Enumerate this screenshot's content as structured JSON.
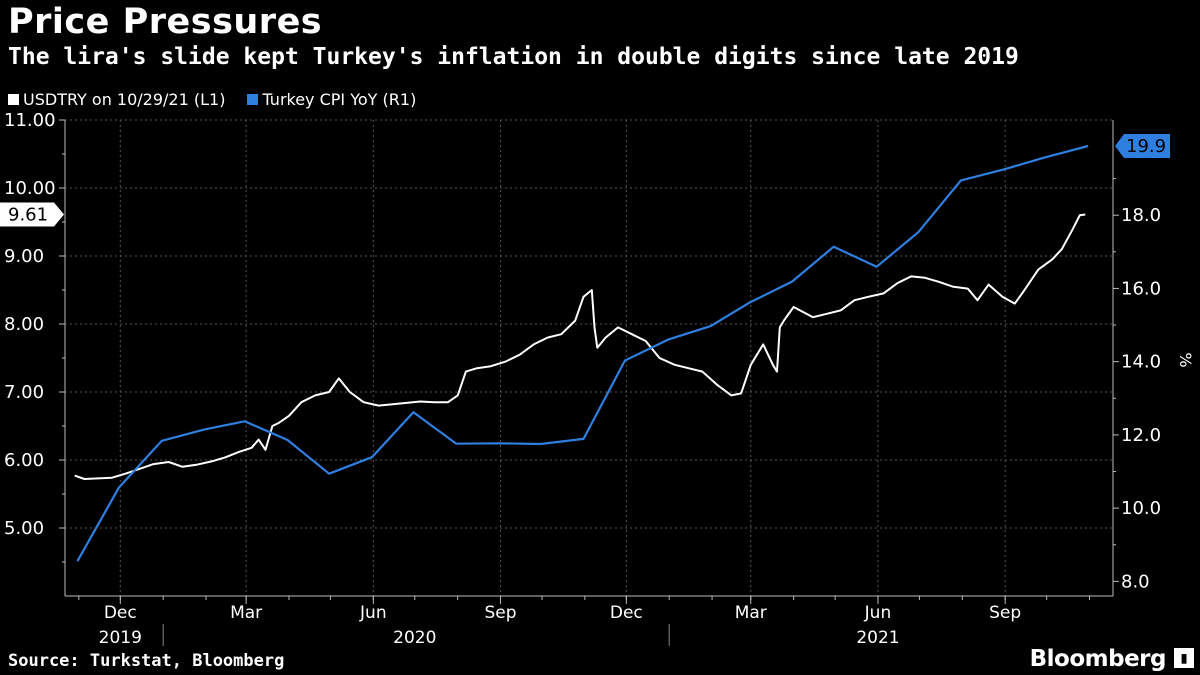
{
  "header": {
    "title": "Price Pressures",
    "subtitle": "The lira's slide kept Turkey's inflation in double digits since late 2019"
  },
  "legend": [
    {
      "label": "USDTRY on 10/29/21 (L1)",
      "color": "#ffffff"
    },
    {
      "label": "Turkey CPI YoY (R1)",
      "color": "#2f7fe0"
    }
  ],
  "footer": {
    "source": "Source: Turkstat, Bloomberg",
    "brand": "Bloomberg"
  },
  "chart_data": {
    "type": "line",
    "x_axis": {
      "month_ticks": [
        "Dec",
        "Mar",
        "Jun",
        "Sep",
        "Dec",
        "Mar",
        "Jun",
        "Sep"
      ],
      "years": [
        "2019",
        "2020",
        "2021"
      ]
    },
    "left_axis": {
      "ticks": [
        "5.00",
        "6.00",
        "7.00",
        "8.00",
        "9.00",
        "10.00",
        "11.00"
      ],
      "ylim": [
        4.0,
        11.0
      ]
    },
    "right_axis": {
      "label": "%",
      "ticks": [
        "8.0",
        "10.0",
        "12.0",
        "14.0",
        "16.0",
        "18.0"
      ],
      "ylim": [
        7.6,
        20.6
      ]
    },
    "series": [
      {
        "name": "USDTRY on 10/29/21 (L1)",
        "axis": "left",
        "color": "#ffffff",
        "last_value_label": "9.61",
        "points": [
          [
            "2019-10-29",
            5.77
          ],
          [
            "2019-11-05",
            5.72
          ],
          [
            "2019-11-15",
            5.73
          ],
          [
            "2019-11-25",
            5.74
          ],
          [
            "2019-12-05",
            5.8
          ],
          [
            "2019-12-15",
            5.87
          ],
          [
            "2019-12-25",
            5.94
          ],
          [
            "2020-01-05",
            5.97
          ],
          [
            "2020-01-15",
            5.9
          ],
          [
            "2020-01-25",
            5.93
          ],
          [
            "2020-02-05",
            5.98
          ],
          [
            "2020-02-15",
            6.04
          ],
          [
            "2020-02-25",
            6.12
          ],
          [
            "2020-03-05",
            6.18
          ],
          [
            "2020-03-10",
            6.3
          ],
          [
            "2020-03-15",
            6.15
          ],
          [
            "2020-03-20",
            6.5
          ],
          [
            "2020-03-25",
            6.55
          ],
          [
            "2020-04-01",
            6.65
          ],
          [
            "2020-04-10",
            6.85
          ],
          [
            "2020-04-20",
            6.95
          ],
          [
            "2020-04-30",
            7.0
          ],
          [
            "2020-05-07",
            7.2
          ],
          [
            "2020-05-15",
            7.0
          ],
          [
            "2020-05-25",
            6.85
          ],
          [
            "2020-06-05",
            6.8
          ],
          [
            "2020-06-15",
            6.82
          ],
          [
            "2020-06-25",
            6.84
          ],
          [
            "2020-07-05",
            6.86
          ],
          [
            "2020-07-15",
            6.85
          ],
          [
            "2020-07-25",
            6.85
          ],
          [
            "2020-08-01",
            6.95
          ],
          [
            "2020-08-07",
            7.3
          ],
          [
            "2020-08-15",
            7.35
          ],
          [
            "2020-08-25",
            7.38
          ],
          [
            "2020-09-05",
            7.45
          ],
          [
            "2020-09-15",
            7.55
          ],
          [
            "2020-09-25",
            7.7
          ],
          [
            "2020-10-05",
            7.8
          ],
          [
            "2020-10-15",
            7.85
          ],
          [
            "2020-10-25",
            8.05
          ],
          [
            "2020-10-31",
            8.4
          ],
          [
            "2020-11-06",
            8.5
          ],
          [
            "2020-11-08",
            7.95
          ],
          [
            "2020-11-10",
            7.65
          ],
          [
            "2020-11-16",
            7.8
          ],
          [
            "2020-11-25",
            7.95
          ],
          [
            "2020-12-05",
            7.85
          ],
          [
            "2020-12-15",
            7.75
          ],
          [
            "2020-12-25",
            7.5
          ],
          [
            "2021-01-05",
            7.4
          ],
          [
            "2021-01-15",
            7.35
          ],
          [
            "2021-01-25",
            7.3
          ],
          [
            "2021-02-05",
            7.1
          ],
          [
            "2021-02-15",
            6.95
          ],
          [
            "2021-02-22",
            6.98
          ],
          [
            "2021-03-01",
            7.4
          ],
          [
            "2021-03-10",
            7.7
          ],
          [
            "2021-03-17",
            7.4
          ],
          [
            "2021-03-20",
            7.3
          ],
          [
            "2021-03-22",
            7.95
          ],
          [
            "2021-03-25",
            8.05
          ],
          [
            "2021-04-01",
            8.25
          ],
          [
            "2021-04-15",
            8.1
          ],
          [
            "2021-04-25",
            8.15
          ],
          [
            "2021-05-05",
            8.2
          ],
          [
            "2021-05-15",
            8.35
          ],
          [
            "2021-05-25",
            8.4
          ],
          [
            "2021-06-05",
            8.45
          ],
          [
            "2021-06-15",
            8.6
          ],
          [
            "2021-06-25",
            8.7
          ],
          [
            "2021-07-05",
            8.68
          ],
          [
            "2021-07-15",
            8.62
          ],
          [
            "2021-07-25",
            8.55
          ],
          [
            "2021-08-05",
            8.52
          ],
          [
            "2021-08-12",
            8.35
          ],
          [
            "2021-08-20",
            8.58
          ],
          [
            "2021-08-30",
            8.4
          ],
          [
            "2021-09-08",
            8.3
          ],
          [
            "2021-09-15",
            8.5
          ],
          [
            "2021-09-25",
            8.8
          ],
          [
            "2021-10-05",
            8.95
          ],
          [
            "2021-10-12",
            9.1
          ],
          [
            "2021-10-20",
            9.4
          ],
          [
            "2021-10-25",
            9.6
          ],
          [
            "2021-10-29",
            9.61
          ]
        ]
      },
      {
        "name": "Turkey CPI YoY (R1)",
        "axis": "right",
        "color": "#2f7fe0",
        "last_value_label": "19.9",
        "points": [
          [
            "2019-10-31",
            8.55
          ],
          [
            "2019-11-30",
            10.56
          ],
          [
            "2019-12-31",
            11.84
          ],
          [
            "2020-01-31",
            12.15
          ],
          [
            "2020-02-29",
            12.37
          ],
          [
            "2020-03-31",
            11.86
          ],
          [
            "2020-04-30",
            10.94
          ],
          [
            "2020-05-31",
            11.39
          ],
          [
            "2020-06-30",
            12.62
          ],
          [
            "2020-07-31",
            11.76
          ],
          [
            "2020-08-31",
            11.77
          ],
          [
            "2020-09-30",
            11.75
          ],
          [
            "2020-10-31",
            11.89
          ],
          [
            "2020-11-30",
            14.03
          ],
          [
            "2020-12-31",
            14.6
          ],
          [
            "2021-01-31",
            14.97
          ],
          [
            "2021-02-28",
            15.61
          ],
          [
            "2021-03-31",
            16.19
          ],
          [
            "2021-04-30",
            17.14
          ],
          [
            "2021-05-31",
            16.59
          ],
          [
            "2021-06-30",
            17.53
          ],
          [
            "2021-07-31",
            18.95
          ],
          [
            "2021-08-31",
            19.25
          ],
          [
            "2021-09-30",
            19.58
          ],
          [
            "2021-10-31",
            19.89
          ]
        ]
      }
    ]
  }
}
